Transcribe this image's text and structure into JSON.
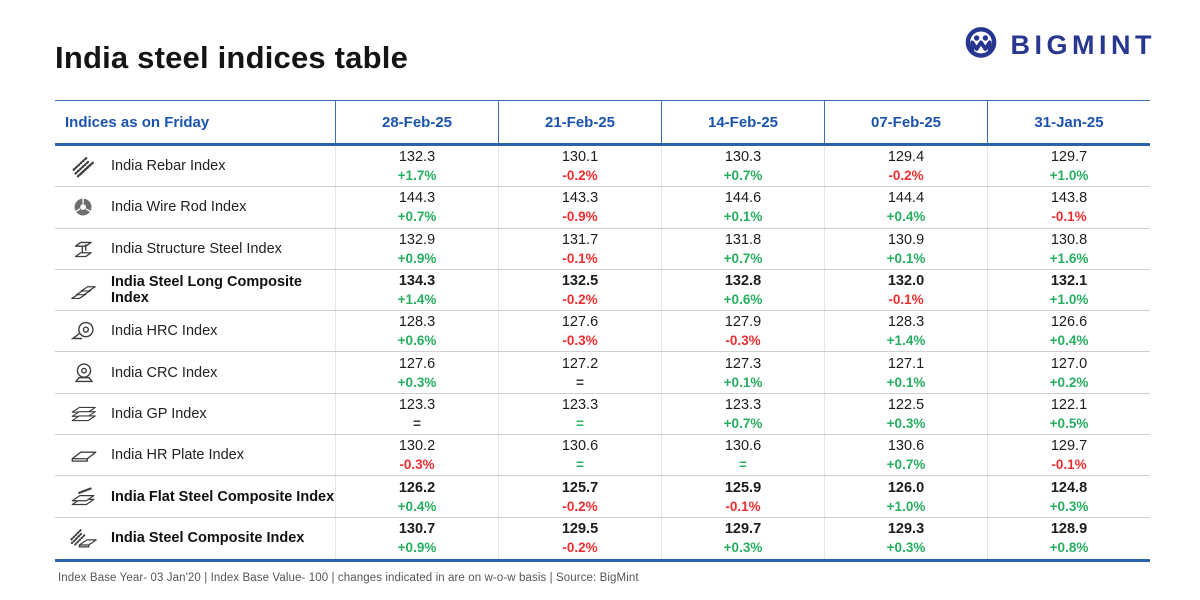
{
  "page": {
    "title": "India steel indices table",
    "brand": "BIGMINT",
    "footer": "Index Base Year- 03 Jan'20 | Index Base Value- 100 | changes indicated in are on w-o-w basis | Source: BigMint"
  },
  "colors": {
    "accent_blue": "#1b54ae",
    "brand_navy": "#27368f",
    "up_green": "#27ae60",
    "down_red": "#ee2e31",
    "flat_dark": "#3a3a3a"
  },
  "chart_data": {
    "type": "table",
    "title": "India steel indices table",
    "columns": [
      "Indices as on Friday",
      "28-Feb-25",
      "21-Feb-25",
      "14-Feb-25",
      "07-Feb-25",
      "31-Jan-25"
    ],
    "rows": [
      {
        "label": "India Rebar Index",
        "icon": "rebar-icon",
        "bold": false,
        "cells": [
          {
            "value": "132.3",
            "change": "+1.7%",
            "color": "green"
          },
          {
            "value": "130.1",
            "change": "-0.2%",
            "color": "red"
          },
          {
            "value": "130.3",
            "change": "+0.7%",
            "color": "green"
          },
          {
            "value": "129.4",
            "change": "-0.2%",
            "color": "red"
          },
          {
            "value": "129.7",
            "change": "+1.0%",
            "color": "green"
          }
        ]
      },
      {
        "label": "India Wire Rod Index",
        "icon": "wire-rod-coil-icon",
        "bold": false,
        "cells": [
          {
            "value": "144.3",
            "change": "+0.7%",
            "color": "green"
          },
          {
            "value": "143.3",
            "change": "-0.9%",
            "color": "red"
          },
          {
            "value": "144.6",
            "change": "+0.1%",
            "color": "green"
          },
          {
            "value": "144.4",
            "change": "+0.4%",
            "color": "green"
          },
          {
            "value": "143.8",
            "change": "-0.1%",
            "color": "red"
          }
        ]
      },
      {
        "label": "India Structure Steel Index",
        "icon": "structure-steel-icon",
        "bold": false,
        "cells": [
          {
            "value": "132.9",
            "change": "+0.9%",
            "color": "green"
          },
          {
            "value": "131.7",
            "change": "-0.1%",
            "color": "red"
          },
          {
            "value": "131.8",
            "change": "+0.7%",
            "color": "green"
          },
          {
            "value": "130.9",
            "change": "+0.1%",
            "color": "green"
          },
          {
            "value": "130.8",
            "change": "+1.6%",
            "color": "green"
          }
        ]
      },
      {
        "label": "India Steel Long Composite Index",
        "icon": "long-steel-stack-icon",
        "bold": true,
        "cells": [
          {
            "value": "134.3",
            "change": "+1.4%",
            "color": "green"
          },
          {
            "value": "132.5",
            "change": "-0.2%",
            "color": "red"
          },
          {
            "value": "132.8",
            "change": "+0.6%",
            "color": "green"
          },
          {
            "value": "132.0",
            "change": "-0.1%",
            "color": "red"
          },
          {
            "value": "132.1",
            "change": "+1.0%",
            "color": "green"
          }
        ]
      },
      {
        "label": "India HRC Index",
        "icon": "hrc-coil-icon",
        "bold": false,
        "cells": [
          {
            "value": "128.3",
            "change": "+0.6%",
            "color": "green"
          },
          {
            "value": "127.6",
            "change": "-0.3%",
            "color": "red"
          },
          {
            "value": "127.9",
            "change": "-0.3%",
            "color": "red"
          },
          {
            "value": "128.3",
            "change": "+1.4%",
            "color": "green"
          },
          {
            "value": "126.6",
            "change": "+0.4%",
            "color": "green"
          }
        ]
      },
      {
        "label": "India CRC Index",
        "icon": "crc-coil-icon",
        "bold": false,
        "cells": [
          {
            "value": "127.6",
            "change": "+0.3%",
            "color": "green"
          },
          {
            "value": "127.2",
            "change": "=",
            "color": "dark"
          },
          {
            "value": "127.3",
            "change": "+0.1%",
            "color": "green"
          },
          {
            "value": "127.1",
            "change": "+0.1%",
            "color": "green"
          },
          {
            "value": "127.0",
            "change": "+0.2%",
            "color": "green"
          }
        ]
      },
      {
        "label": "India GP Index",
        "icon": "gp-sheets-icon",
        "bold": false,
        "cells": [
          {
            "value": "123.3",
            "change": "=",
            "color": "dark"
          },
          {
            "value": "123.3",
            "change": "=",
            "color": "green"
          },
          {
            "value": "123.3",
            "change": "+0.7%",
            "color": "green"
          },
          {
            "value": "122.5",
            "change": "+0.3%",
            "color": "green"
          },
          {
            "value": "122.1",
            "change": "+0.5%",
            "color": "green"
          }
        ]
      },
      {
        "label": "India HR Plate Index",
        "icon": "hr-plate-icon",
        "bold": false,
        "cells": [
          {
            "value": "130.2",
            "change": "-0.3%",
            "color": "red"
          },
          {
            "value": "130.6",
            "change": "=",
            "color": "green"
          },
          {
            "value": "130.6",
            "change": "=",
            "color": "green"
          },
          {
            "value": "130.6",
            "change": "+0.7%",
            "color": "green"
          },
          {
            "value": "129.7",
            "change": "-0.1%",
            "color": "red"
          }
        ]
      },
      {
        "label": "India Flat Steel Composite Index",
        "icon": "flat-steel-stack-icon",
        "bold": true,
        "cells": [
          {
            "value": "126.2",
            "change": "+0.4%",
            "color": "green"
          },
          {
            "value": "125.7",
            "change": "-0.2%",
            "color": "red"
          },
          {
            "value": "125.9",
            "change": "-0.1%",
            "color": "red"
          },
          {
            "value": "126.0",
            "change": "+1.0%",
            "color": "green"
          },
          {
            "value": "124.8",
            "change": "+0.3%",
            "color": "green"
          }
        ]
      },
      {
        "label": "India Steel Composite Index",
        "icon": "steel-composite-icon",
        "bold": true,
        "cells": [
          {
            "value": "130.7",
            "change": "+0.9%",
            "color": "green"
          },
          {
            "value": "129.5",
            "change": "-0.2%",
            "color": "red"
          },
          {
            "value": "129.7",
            "change": "+0.3%",
            "color": "green"
          },
          {
            "value": "129.3",
            "change": "+0.3%",
            "color": "green"
          },
          {
            "value": "128.9",
            "change": "+0.8%",
            "color": "green"
          }
        ]
      }
    ]
  }
}
